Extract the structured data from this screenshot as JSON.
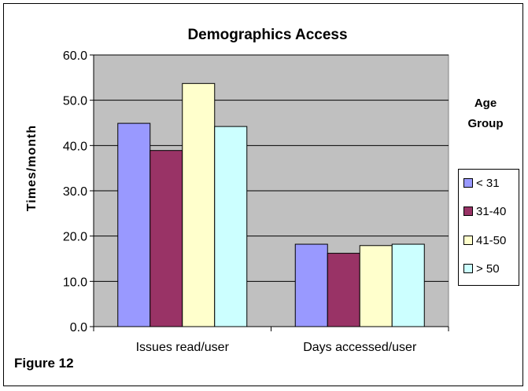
{
  "chart_data": {
    "type": "bar",
    "title": "Demographics Access",
    "ylabel": "Times/month",
    "xlabel": "",
    "categories": [
      "Issues read/user",
      "Days accessed/user"
    ],
    "series": [
      {
        "name": "< 31",
        "values": [
          44.9,
          18.2
        ],
        "color": "#9999ff"
      },
      {
        "name": "31-40",
        "values": [
          38.9,
          16.2
        ],
        "color": "#993366"
      },
      {
        "name": "41-50",
        "values": [
          53.7,
          17.9
        ],
        "color": "#ffffcc"
      },
      {
        "name": "> 50",
        "values": [
          44.2,
          18.2
        ],
        "color": "#ccffff"
      }
    ],
    "ylim": [
      0,
      60
    ],
    "yticks": [
      "0.0",
      "10.0",
      "20.0",
      "30.0",
      "40.0",
      "50.0",
      "60.0"
    ],
    "grid": true,
    "plot_background": "#c0c0c0",
    "legend_title": [
      "Age",
      "Group"
    ],
    "legend_position": "right"
  },
  "figure_label": "Figure 12"
}
